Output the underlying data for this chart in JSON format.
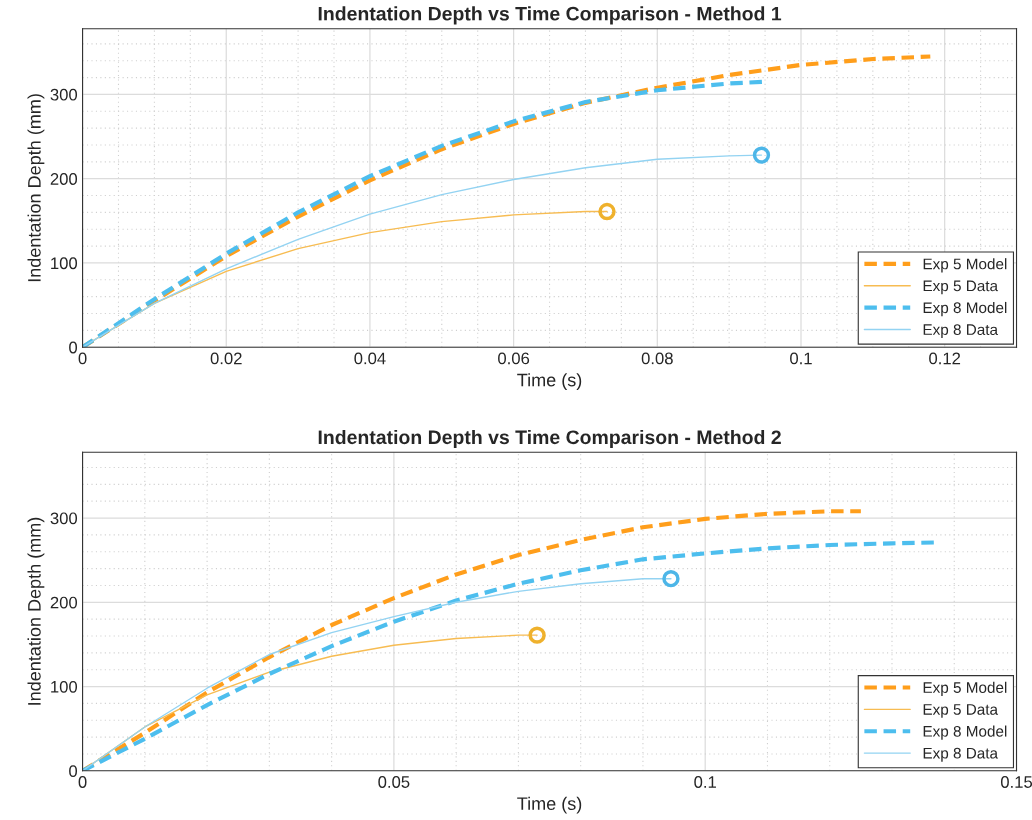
{
  "chart_data": [
    {
      "type": "line",
      "title": "Indentation Depth vs Time Comparison - Method 1",
      "xlabel": "Time (s)",
      "ylabel": "Indentation Depth (mm)",
      "xlim": [
        0,
        0.13
      ],
      "ylim": [
        0,
        378
      ],
      "xticks": [
        0,
        0.02,
        0.04,
        0.06,
        0.08,
        0.1,
        0.12
      ],
      "yticks": [
        0,
        100,
        200,
        300
      ],
      "grid": true,
      "legend": "bottom right",
      "series": [
        {
          "name": "Exp 5 Model",
          "color": "#ff9e1b",
          "line_style": "dashed",
          "x": [
            0,
            0.01,
            0.02,
            0.03,
            0.04,
            0.05,
            0.06,
            0.07,
            0.08,
            0.09,
            0.1,
            0.11,
            0.118
          ],
          "values": [
            0,
            55,
            108,
            155,
            198,
            235,
            265,
            290,
            308,
            323,
            335,
            342,
            345
          ]
        },
        {
          "name": "Exp 5 Data",
          "color": "#f7bc52",
          "line_style": "solid",
          "x": [
            0,
            0.01,
            0.02,
            0.03,
            0.04,
            0.05,
            0.06,
            0.07,
            0.073
          ],
          "values": [
            0,
            52,
            90,
            117,
            136,
            149,
            157,
            161,
            161
          ]
        },
        {
          "name": "Exp 8 Model",
          "color": "#4dbeee",
          "line_style": "dashed",
          "x": [
            0,
            0.01,
            0.02,
            0.03,
            0.04,
            0.05,
            0.06,
            0.07,
            0.08,
            0.09,
            0.095
          ],
          "values": [
            0,
            57,
            111,
            160,
            203,
            239,
            268,
            291,
            305,
            313,
            315
          ]
        },
        {
          "name": "Exp 8 Data",
          "color": "#93d3f2",
          "line_style": "solid",
          "x": [
            0,
            0.01,
            0.02,
            0.03,
            0.04,
            0.05,
            0.06,
            0.07,
            0.08,
            0.09,
            0.0945
          ],
          "values": [
            0,
            52,
            93,
            128,
            158,
            181,
            199,
            213,
            223,
            227,
            228
          ]
        },
        {
          "type": "scatter",
          "marker": "circle",
          "color": "#efb12c",
          "x": [
            0.073
          ],
          "values": [
            161
          ]
        },
        {
          "type": "scatter",
          "marker": "circle",
          "color": "#4db6e8",
          "x": [
            0.0945
          ],
          "values": [
            228
          ]
        }
      ]
    },
    {
      "type": "line",
      "title": "Indentation Depth vs Time Comparison - Method 2",
      "xlabel": "Time (s)",
      "ylabel": "Indentation Depth (mm)",
      "xlim": [
        0,
        0.15
      ],
      "ylim": [
        0,
        378
      ],
      "xticks": [
        0,
        0.05,
        0.1,
        0.15
      ],
      "yticks": [
        0,
        100,
        200,
        300
      ],
      "grid": true,
      "legend": "bottom right",
      "series": [
        {
          "name": "Exp 5 Model",
          "color": "#ff9e1b",
          "line_style": "dashed",
          "x": [
            0,
            0.01,
            0.02,
            0.03,
            0.04,
            0.05,
            0.06,
            0.07,
            0.08,
            0.09,
            0.1,
            0.11,
            0.12,
            0.125
          ],
          "values": [
            0,
            45,
            93,
            135,
            173,
            205,
            233,
            256,
            274,
            289,
            299,
            305,
            308,
            308
          ]
        },
        {
          "name": "Exp 5 Data",
          "color": "#f7bc52",
          "line_style": "solid",
          "x": [
            0,
            0.01,
            0.02,
            0.03,
            0.04,
            0.05,
            0.06,
            0.07,
            0.073
          ],
          "values": [
            0,
            52,
            90,
            117,
            136,
            149,
            157,
            161,
            161
          ]
        },
        {
          "name": "Exp 8 Model",
          "color": "#4dbeee",
          "line_style": "dashed",
          "x": [
            0,
            0.01,
            0.02,
            0.03,
            0.04,
            0.05,
            0.06,
            0.07,
            0.08,
            0.09,
            0.1,
            0.11,
            0.12,
            0.13,
            0.137
          ],
          "values": [
            0,
            38,
            78,
            115,
            148,
            177,
            202,
            222,
            238,
            251,
            258,
            264,
            268,
            270,
            271
          ]
        },
        {
          "name": "Exp 8 Data",
          "color": "#93d3f2",
          "line_style": "solid",
          "x": [
            0,
            0.01,
            0.02,
            0.03,
            0.04,
            0.05,
            0.06,
            0.07,
            0.08,
            0.09,
            0.0945
          ],
          "values": [
            0,
            52,
            98,
            138,
            164,
            183,
            200,
            213,
            222,
            228,
            228
          ]
        },
        {
          "type": "scatter",
          "marker": "circle",
          "color": "#efb12c",
          "x": [
            0.073
          ],
          "values": [
            161
          ]
        },
        {
          "type": "scatter",
          "marker": "circle",
          "color": "#4db6e8",
          "x": [
            0.0945
          ],
          "values": [
            228
          ]
        }
      ]
    }
  ]
}
